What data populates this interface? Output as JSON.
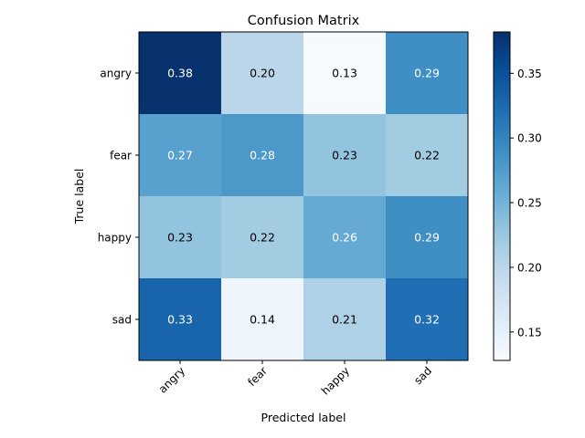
{
  "chart_data": {
    "type": "heatmap",
    "title": "Confusion Matrix",
    "xlabel": "Predicted label",
    "ylabel": "True label",
    "x_categories": [
      "angry",
      "fear",
      "happy",
      "sad"
    ],
    "y_categories": [
      "angry",
      "fear",
      "happy",
      "sad"
    ],
    "values": [
      [
        0.38,
        0.2,
        0.13,
        0.29
      ],
      [
        0.27,
        0.28,
        0.23,
        0.22
      ],
      [
        0.23,
        0.22,
        0.26,
        0.29
      ],
      [
        0.33,
        0.14,
        0.21,
        0.32
      ]
    ],
    "value_labels": [
      [
        "0.38",
        "0.20",
        "0.13",
        "0.29"
      ],
      [
        "0.27",
        "0.28",
        "0.23",
        "0.22"
      ],
      [
        "0.23",
        "0.22",
        "0.26",
        "0.29"
      ],
      [
        "0.33",
        "0.14",
        "0.21",
        "0.32"
      ]
    ],
    "colormap": "Blues",
    "colorbar": {
      "range": [
        0.128,
        0.382
      ],
      "ticks": [
        0.15,
        0.2,
        0.25,
        0.3,
        0.35
      ],
      "tick_labels": [
        "0.15",
        "0.20",
        "0.25",
        "0.30",
        "0.35"
      ]
    },
    "x_tick_rotation": "45 degrees",
    "grid": false
  }
}
